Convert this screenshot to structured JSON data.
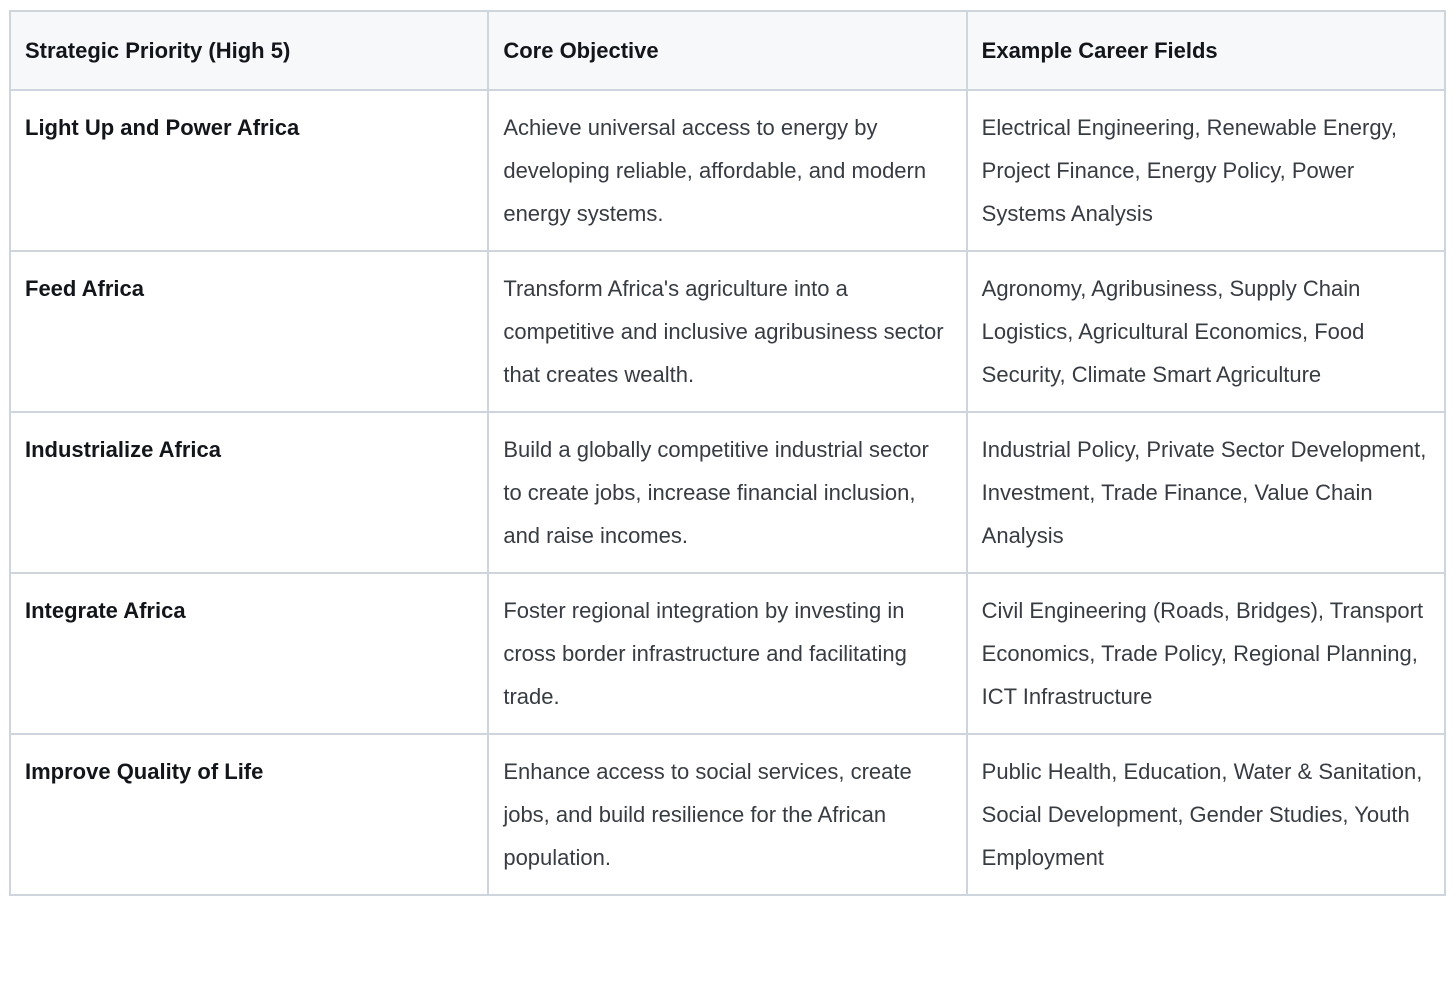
{
  "colors": {
    "border": "#cfd5dd",
    "header_background": "#f6f8fa",
    "bold_text": "#121519",
    "body_text": "#373c43",
    "page_background": "#ffffff"
  },
  "table": {
    "columns": [
      {
        "label": "Strategic Priority (High 5)"
      },
      {
        "label": "Core Objective"
      },
      {
        "label": "Example Career Fields"
      }
    ],
    "rows": [
      {
        "priority": "Light Up and Power Africa",
        "objective": "Achieve universal access to energy by developing reliable, affordable, and modern energy systems.",
        "careers": "Electrical Engineering, Renewable Energy, Project Finance, Energy Policy, Power Systems Analysis"
      },
      {
        "priority": "Feed Africa",
        "objective": "Transform Africa's agriculture into a competitive and inclusive agribusiness sector that creates wealth.",
        "careers": "Agronomy, Agribusiness, Supply Chain Logistics, Agricultural Economics, Food Security, Climate Smart Agriculture"
      },
      {
        "priority": "Industrialize Africa",
        "objective": "Build a globally competitive industrial sector to create jobs, increase financial inclusion, and raise incomes.",
        "careers": "Industrial Policy, Private Sector Development, Investment, Trade Finance, Value Chain Analysis"
      },
      {
        "priority": "Integrate Africa",
        "objective": "Foster regional integration by investing in cross border infrastructure and facilitating trade.",
        "careers": "Civil Engineering (Roads, Bridges), Transport Economics, Trade Policy, Regional Planning, ICT Infrastructure"
      },
      {
        "priority": "Improve Quality of Life",
        "objective": "Enhance access to social services, create jobs, and build resilience for the African population.",
        "careers": "Public Health, Education, Water & Sanitation, Social Development, Gender Studies, Youth Employment"
      }
    ]
  }
}
